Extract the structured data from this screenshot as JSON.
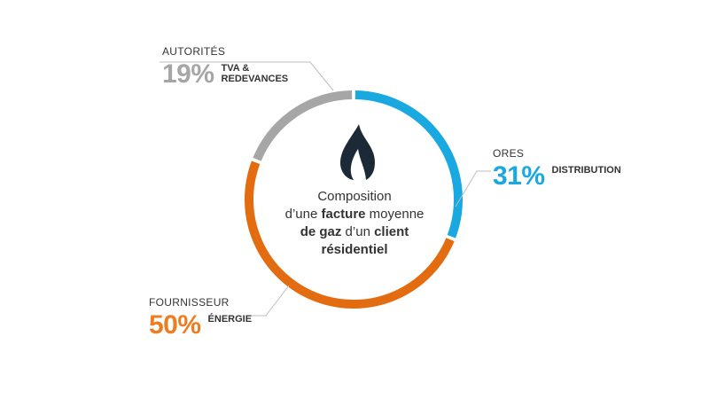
{
  "chart_data": {
    "type": "pie",
    "style": "donut",
    "categories": [
      "ORES",
      "FOURNISSEUR",
      "AUTORITÉS"
    ],
    "values": [
      31,
      50,
      19
    ],
    "value_labels": [
      "31%",
      "50%",
      "19%"
    ],
    "descriptions": [
      "DISTRIBUTION",
      "ÉNERGIE",
      "TVA &\nREDEVANCES"
    ],
    "colors": [
      "#19a9e0",
      "#e36c10",
      "#a6a6a6"
    ],
    "title_parts": [
      {
        "text": "Composition",
        "bold": false,
        "newline_after": true
      },
      {
        "text": "d’une ",
        "bold": false
      },
      {
        "text": "facture",
        "bold": true
      },
      {
        "text": " moyenne",
        "bold": false,
        "newline_after": true
      },
      {
        "text": "de gaz",
        "bold": true
      },
      {
        "text": " d’un ",
        "bold": false
      },
      {
        "text": "client",
        "bold": true,
        "newline_after": true
      },
      {
        "text": "résidentiel",
        "bold": true
      }
    ]
  },
  "icon": "gas-flame-icon",
  "colors": {
    "flame": "#1b2a36",
    "leader_line": "#bdbdbd"
  }
}
